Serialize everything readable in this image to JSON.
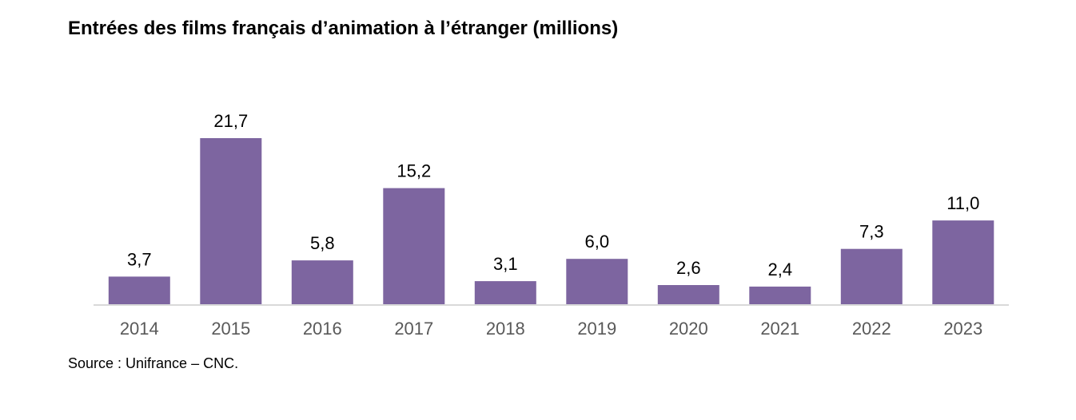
{
  "chart_data": {
    "type": "bar",
    "title": "Entrées des films français d’animation à l’étranger (millions)",
    "categories": [
      "2014",
      "2015",
      "2016",
      "2017",
      "2018",
      "2019",
      "2020",
      "2021",
      "2022",
      "2023"
    ],
    "values": [
      3.7,
      21.7,
      5.8,
      15.2,
      3.1,
      6.0,
      2.6,
      2.4,
      7.3,
      11.0
    ],
    "value_labels": [
      "3,7",
      "21,7",
      "5,8",
      "15,2",
      "3,1",
      "6,0",
      "2,6",
      "2,4",
      "7,3",
      "11,0"
    ],
    "xlabel": "",
    "ylabel": "",
    "ylim": [
      0,
      21.7
    ],
    "grid": false,
    "legend": "none",
    "bar_color": "#7d65a0",
    "axis_color": "#d9d9d9",
    "tick_label_color": "#595959"
  },
  "source": "Source : Unifrance – CNC."
}
